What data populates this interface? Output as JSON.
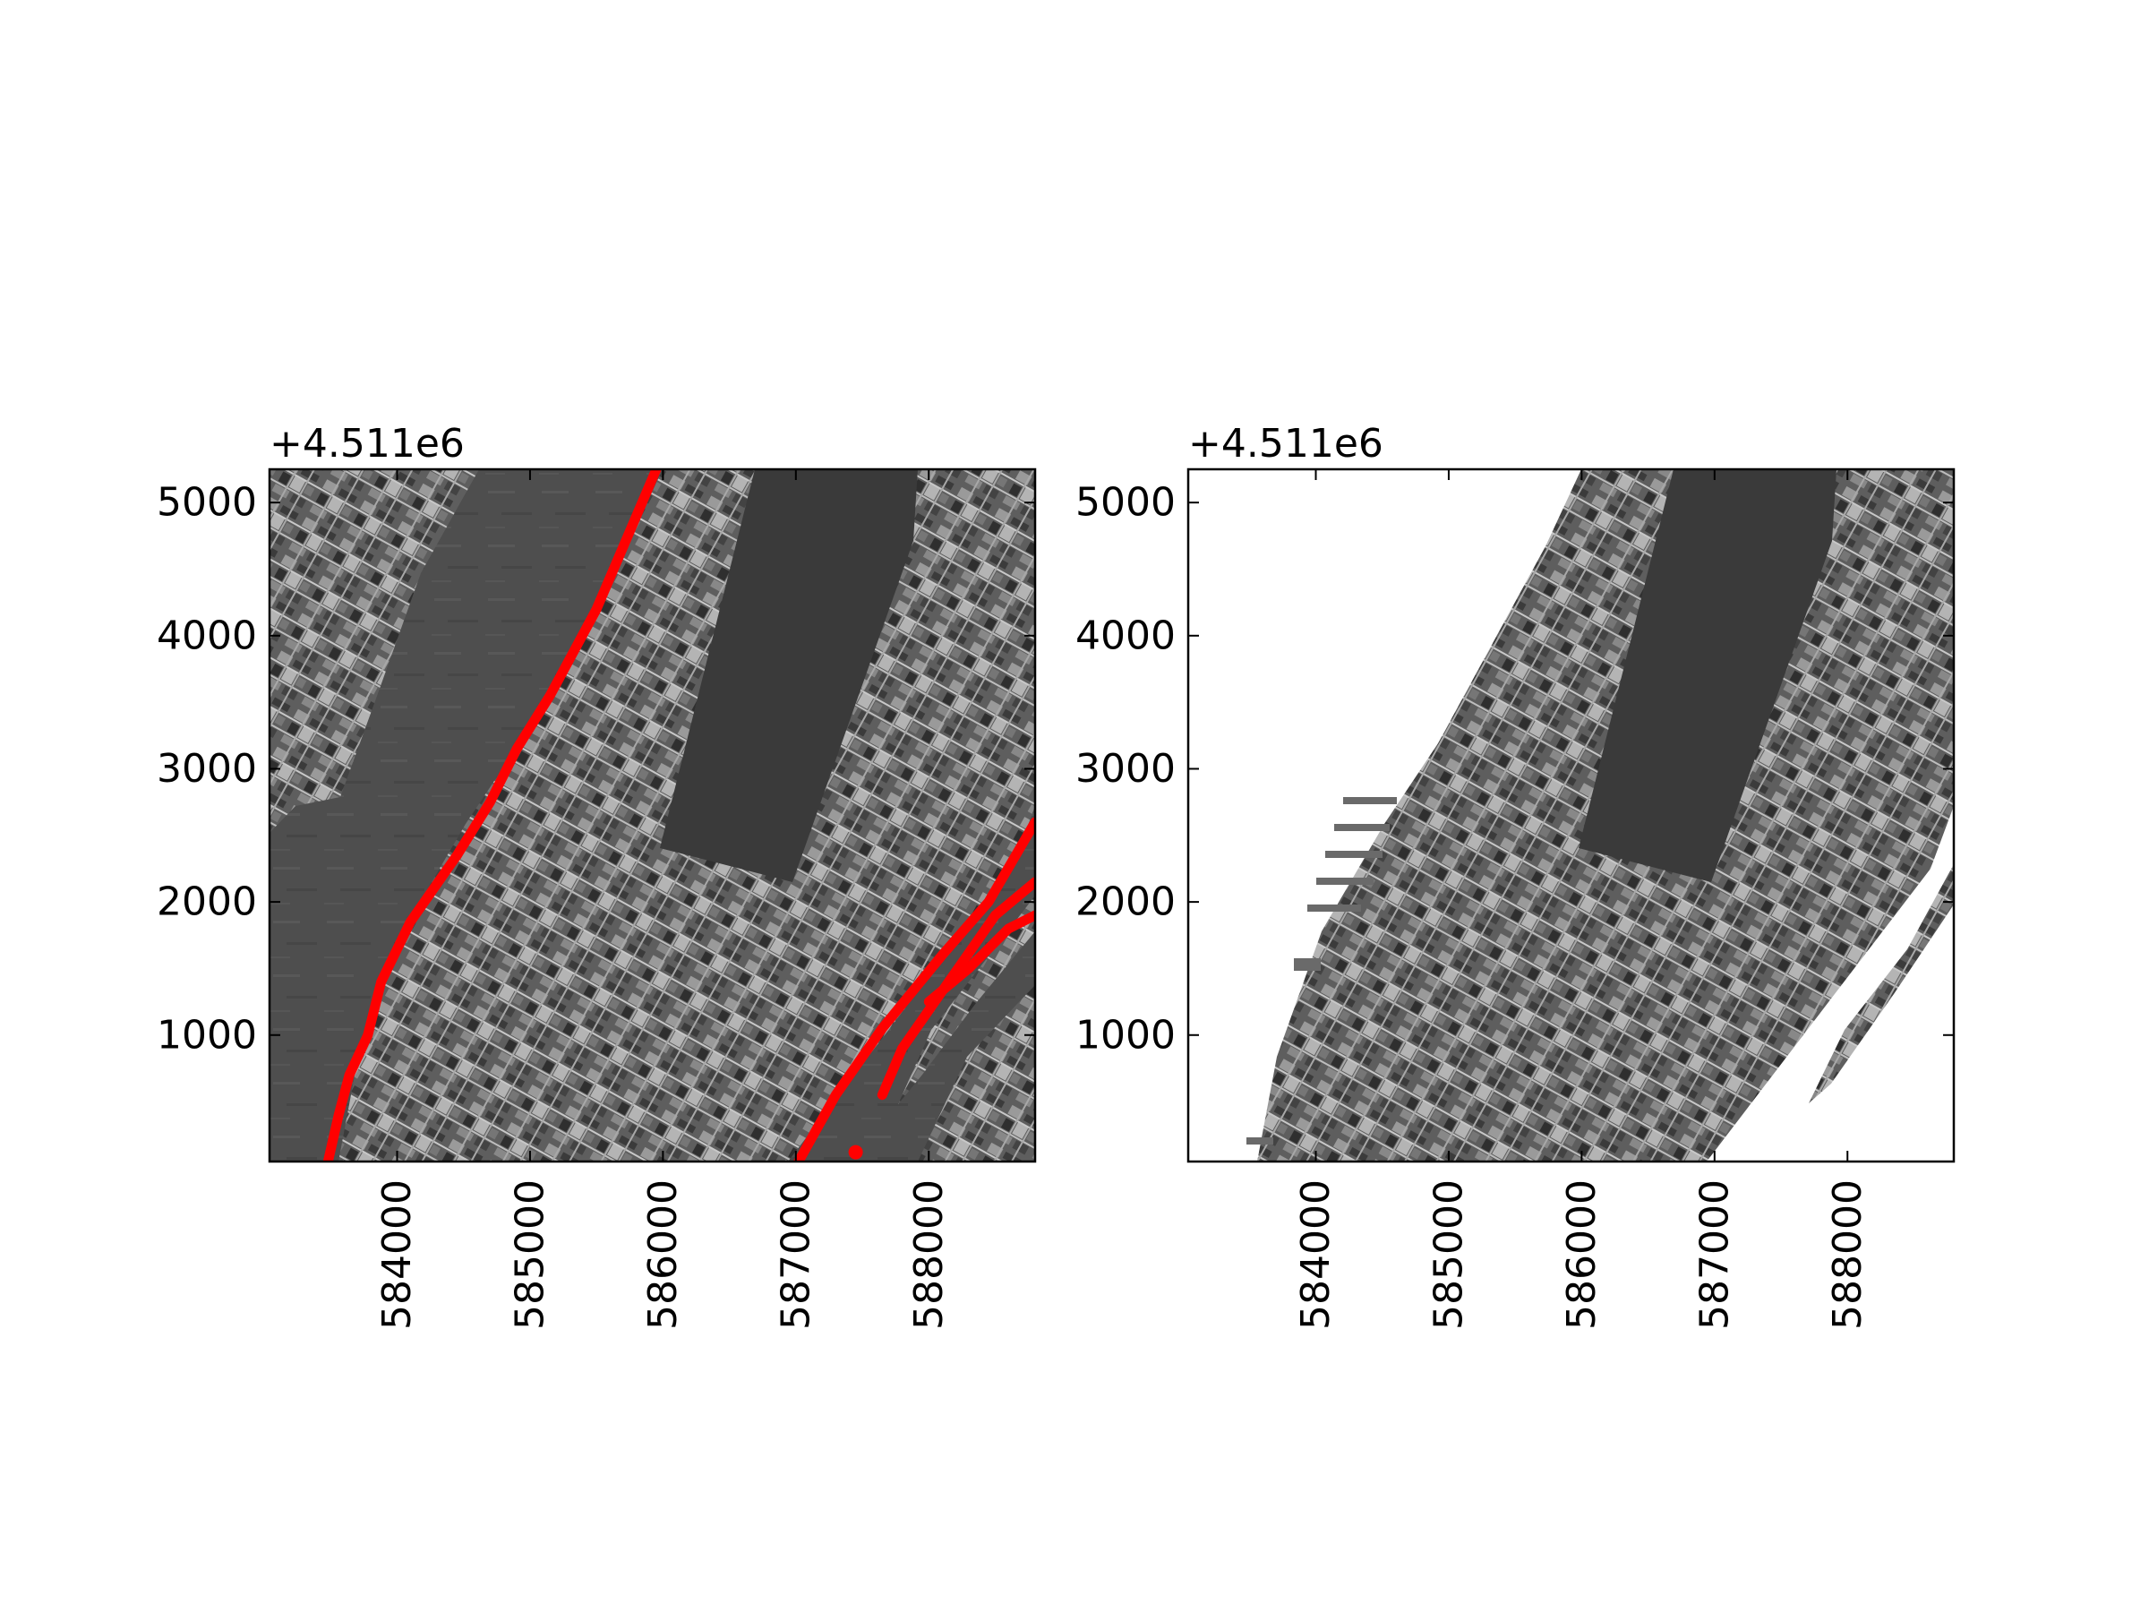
{
  "figure": {
    "background": "#ffffff"
  },
  "chart_data": [
    {
      "type": "image",
      "panel": "left",
      "title": "",
      "xlabel": "",
      "ylabel": "",
      "y_offset_label": "+4.511e6",
      "xlim": [
        583040,
        588800
      ],
      "ylim": [
        50,
        5250
      ],
      "x_ticks": [
        584000,
        585000,
        586000,
        587000,
        588000
      ],
      "x_tick_labels": [
        "584000",
        "585000",
        "586000",
        "587000",
        "588000"
      ],
      "y_ticks": [
        1000,
        2000,
        3000,
        4000,
        5000
      ],
      "y_tick_labels": [
        "1000",
        "2000",
        "3000",
        "4000",
        "5000"
      ],
      "x_tick_label_rotation": "vertical",
      "background": "grayscale satellite image of Manhattan, full extent",
      "overlay_color": "#ff0000",
      "overlay_lines": [
        {
          "name": "",
          "points": [
            [
              583480,
              50
            ],
            [
              583560,
              400
            ],
            [
              583640,
              700
            ],
            [
              583780,
              1000
            ],
            [
              583880,
              1400
            ],
            [
              584100,
              1850
            ],
            [
              584450,
              2350
            ],
            [
              584700,
              2750
            ],
            [
              584900,
              3150
            ],
            [
              585150,
              3550
            ],
            [
              585500,
              4200
            ],
            [
              585950,
              5250
            ]
          ]
        },
        {
          "name": "",
          "points": [
            [
              587020,
              50
            ],
            [
              587300,
              550
            ],
            [
              587650,
              1050
            ],
            [
              588100,
              1600
            ],
            [
              588450,
              2000
            ],
            [
              588800,
              2600
            ]
          ]
        },
        {
          "name": "",
          "points": [
            [
              587650,
              550
            ],
            [
              587800,
              900
            ],
            [
              588150,
              1400
            ],
            [
              588500,
              1900
            ],
            [
              588800,
              2150
            ]
          ]
        },
        {
          "name": "",
          "points": [
            [
              588000,
              1250
            ],
            [
              588300,
              1500
            ],
            [
              588600,
              1800
            ],
            [
              588800,
              1900
            ]
          ]
        }
      ],
      "overlay_points": [
        [
          587450,
          120
        ]
      ]
    },
    {
      "type": "image",
      "panel": "right",
      "title": "",
      "xlabel": "",
      "ylabel": "",
      "y_offset_label": "+4.511e6",
      "xlim": [
        583040,
        588800
      ],
      "ylim": [
        50,
        5250
      ],
      "x_ticks": [
        584000,
        585000,
        586000,
        587000,
        588000
      ],
      "x_tick_labels": [
        "584000",
        "585000",
        "586000",
        "587000",
        "588000"
      ],
      "y_ticks": [
        1000,
        2000,
        3000,
        4000,
        5000
      ],
      "y_tick_labels": [
        "1000",
        "2000",
        "3000",
        "4000",
        "5000"
      ],
      "x_tick_label_rotation": "vertical",
      "background": "grayscale satellite image of Manhattan masked to land, water shown white",
      "mask_color": "#ffffff"
    }
  ]
}
